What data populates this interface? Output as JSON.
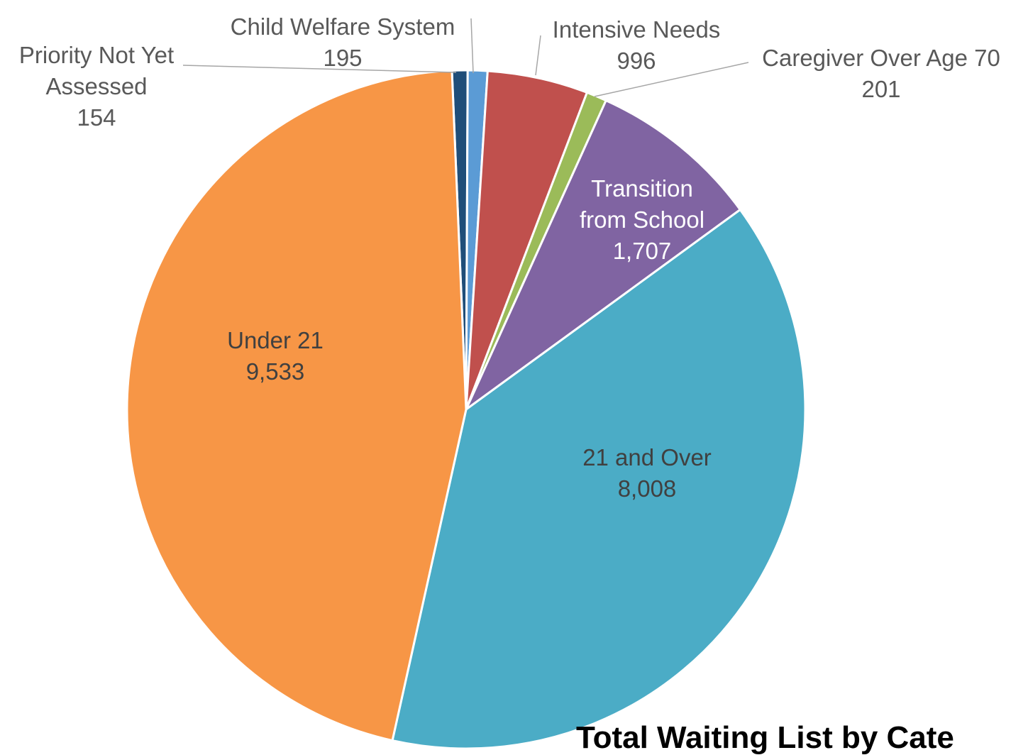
{
  "chart_data": {
    "type": "pie",
    "title": "Total Waiting List by Cate",
    "start_angle_deg": 0,
    "direction": "clockwise",
    "slices": [
      {
        "label": "Priority Not Yet Assessed",
        "value_label": "154",
        "value": 154,
        "color": "#1F4E79"
      },
      {
        "label": "Child Welfare System",
        "value_label": "195",
        "value": 195,
        "color": "#5B9BD5"
      },
      {
        "label": "Intensive Needs",
        "value_label": "996",
        "value": 996,
        "color": "#C0504D"
      },
      {
        "label": "Caregiver Over Age 70",
        "value_label": "201",
        "value": 201,
        "color": "#9BBB59"
      },
      {
        "label": "Transition from School",
        "value_label": "1,707",
        "value": 1707,
        "color": "#8064A2"
      },
      {
        "label": "21 and Over",
        "value_label": "8,008",
        "value": 8008,
        "color": "#4BACC6"
      },
      {
        "label": "Under 21",
        "value_label": "9,533",
        "value": 9533,
        "color": "#F79646"
      }
    ]
  }
}
